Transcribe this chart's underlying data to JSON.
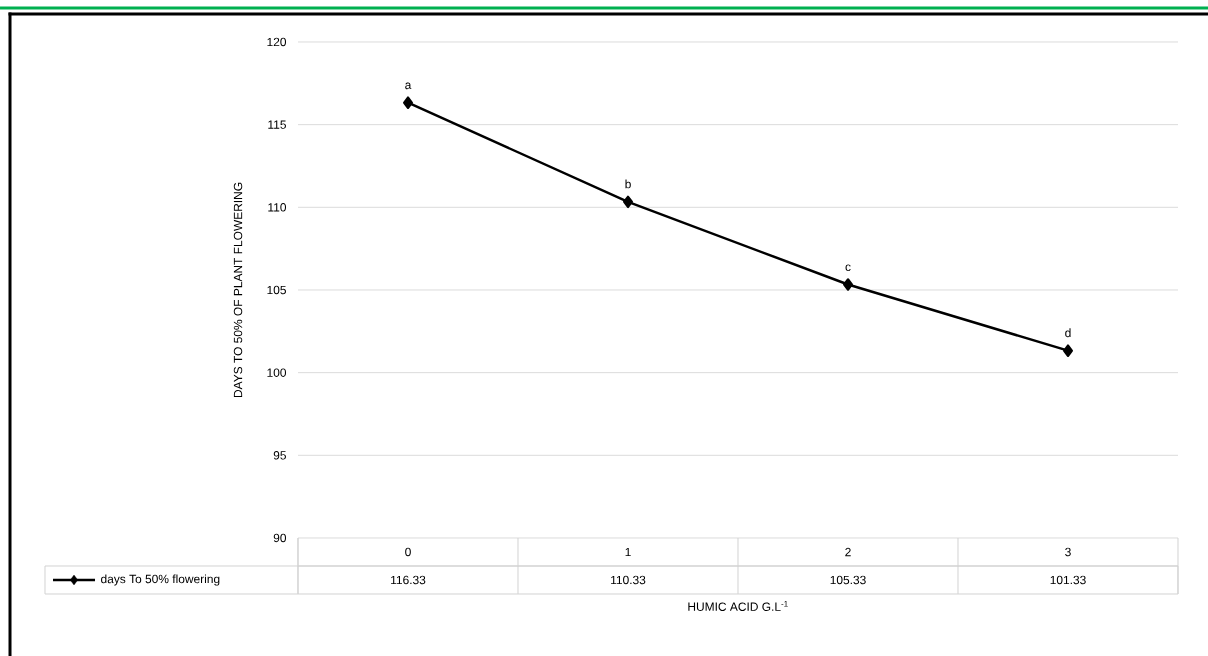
{
  "chart_data": {
    "type": "line",
    "xlabel": "HUMIC ACID G.L$^{-1}$",
    "ylabel": "DAYS TO 50% OF PLANT FLOWERING",
    "categories": [
      "0",
      "1",
      "2",
      "3"
    ],
    "series": [
      {
        "name": "days To 50% flowering",
        "color": "#000000",
        "values": [
          116.33,
          110.33,
          105.33,
          101.33
        ]
      }
    ],
    "ylim": [
      90,
      120
    ],
    "yticks": [
      90,
      95,
      100,
      105,
      110,
      115,
      120
    ],
    "grid": "y",
    "marker": "diamond",
    "line_style": "solid",
    "legend": "bottom left",
    "data_labels": true,
    "annotations": [
      {
        "text": "a",
        "x": "0",
        "y": 116.33
      },
      {
        "text": "b",
        "x": "1",
        "y": 110.33
      },
      {
        "text": "c",
        "x": "2",
        "y": 105.33
      },
      {
        "text": "d",
        "x": "3",
        "y": 101.33
      }
    ]
  }
}
